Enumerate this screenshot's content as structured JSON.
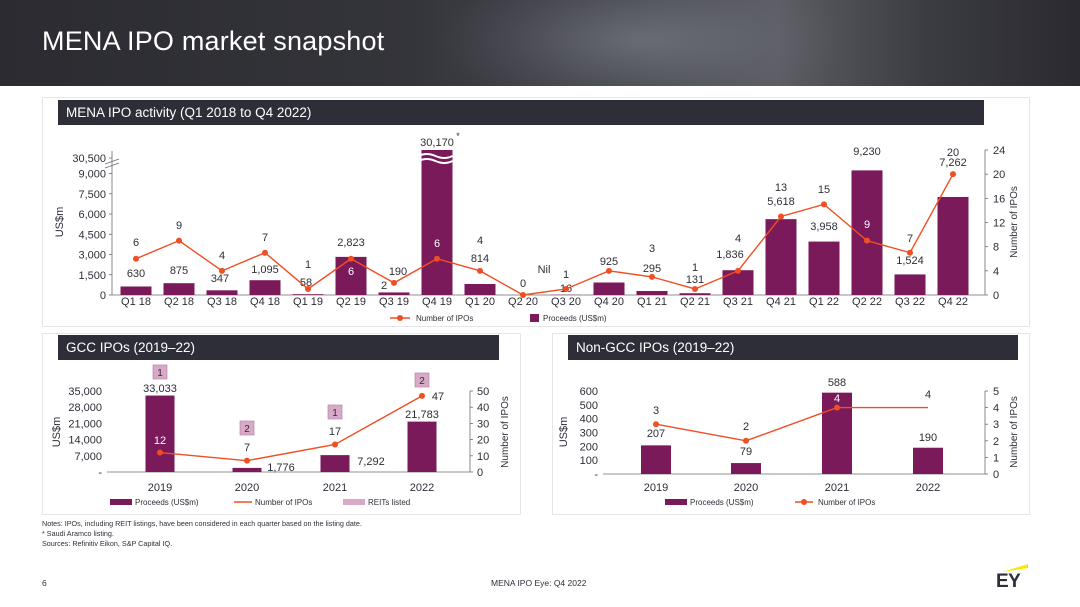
{
  "page": {
    "title": "MENA IPO market snapshot",
    "page_number": "6",
    "footer": "MENA IPO Eye: Q4 2022",
    "logo_text": "EY",
    "notes": [
      "Notes: IPOs, including REIT listings, have been considered in each quarter based on the listing date.",
      "* Saudi Aramco listing.",
      "Sources: Refinitiv Eikon, S&P Capital IQ."
    ]
  },
  "colors": {
    "bar": "#7a1a5a",
    "line": "#f04e23",
    "band": "#2e2e38",
    "reit": "#d9a9c8"
  },
  "chart_data": [
    {
      "type": "bar",
      "title": "MENA IPO activity (Q1 2018 to Q4 2022)",
      "ylabel": "US$m",
      "y2label": "Number of IPOs",
      "yticks": [
        "0",
        "1,500",
        "3,000",
        "4,500",
        "6,000",
        "7,500",
        "9,000",
        "30,500"
      ],
      "y2ticks": [
        "0",
        "4",
        "8",
        "12",
        "16",
        "20",
        "24"
      ],
      "ylim": [
        0,
        10000
      ],
      "y2lim": [
        0,
        24
      ],
      "axis_break": true,
      "categories": [
        "Q1 18",
        "Q2 18",
        "Q3 18",
        "Q4 18",
        "Q1 19",
        "Q2 19",
        "Q3 19",
        "Q4 19",
        "Q1 20",
        "Q2 20",
        "Q3 20",
        "Q4 20",
        "Q1 21",
        "Q2 21",
        "Q3 21",
        "Q4 21",
        "Q1 22",
        "Q2 22",
        "Q3 22",
        "Q4 22"
      ],
      "series": [
        {
          "name": "Proceeds (US$m)",
          "type": "bar",
          "values": [
            630,
            875,
            347,
            1095,
            58,
            2823,
            190,
            30170,
            814,
            0,
            16,
            925,
            295,
            131,
            1836,
            5618,
            3958,
            9230,
            1524,
            7262
          ],
          "labels": [
            "630",
            "875",
            "347",
            "1,095",
            "58",
            "2,823",
            "190",
            "30,170",
            "814",
            "0",
            "16",
            "925",
            "295",
            "131",
            "1,836",
            "5,618",
            "3,958",
            "9,230",
            "1,524",
            "7,262"
          ]
        },
        {
          "name": "Number of IPOs",
          "type": "line",
          "values": [
            6,
            9,
            4,
            7,
            1,
            6,
            2,
            6,
            4,
            0,
            1,
            4,
            3,
            1,
            4,
            13,
            15,
            9,
            7,
            20
          ],
          "labels": [
            "6",
            "9",
            "4",
            "7",
            "1",
            "6",
            "2",
            "6",
            "4",
            "",
            "1",
            "4",
            "3",
            "1",
            "4",
            "13",
            "15",
            "9",
            "7",
            "20"
          ]
        }
      ],
      "annotations": {
        "nil_label": "Nil",
        "aramco_mark": "*"
      },
      "legend": [
        "Number of IPOs",
        "Proceeds (US$m)"
      ]
    },
    {
      "type": "bar",
      "title": "GCC IPOs (2019–22)",
      "ylabel": "US$m",
      "y2label": "Number of IPOs",
      "yticks": [
        "-",
        "7,000",
        "14,000",
        "21,000",
        "28,000",
        "35,000"
      ],
      "y2ticks": [
        "0",
        "10",
        "20",
        "30",
        "40",
        "50"
      ],
      "ylim": [
        0,
        35000
      ],
      "y2lim": [
        0,
        50
      ],
      "categories": [
        "2019",
        "2020",
        "2021",
        "2022"
      ],
      "series": [
        {
          "name": "Proceeds (US$m)",
          "type": "bar",
          "values": [
            33033,
            1776,
            7292,
            21783
          ],
          "labels": [
            "33,033",
            "1,776",
            "7,292",
            "21,783"
          ]
        },
        {
          "name": "Number of IPOs",
          "type": "line",
          "values": [
            12,
            7,
            17,
            47
          ],
          "labels": [
            "12",
            "7",
            "17",
            "47"
          ]
        },
        {
          "name": "REITs listed",
          "type": "badge",
          "values": [
            1,
            2,
            1,
            2
          ],
          "labels": [
            "1",
            "2",
            "1",
            "2"
          ]
        }
      ],
      "legend": [
        "Proceeds (US$m)",
        "Number of IPOs",
        "REITs listed"
      ]
    },
    {
      "type": "bar",
      "title": "Non-GCC IPOs (2019–22)",
      "ylabel": "US$m",
      "y2label": "Number of IPOs",
      "yticks": [
        "-",
        "100",
        "200",
        "300",
        "400",
        "500",
        "600"
      ],
      "y2ticks": [
        "0",
        "1",
        "2",
        "3",
        "4",
        "5"
      ],
      "ylim": [
        0,
        600
      ],
      "y2lim": [
        0,
        5
      ],
      "categories": [
        "2019",
        "2020",
        "2021",
        "2022"
      ],
      "series": [
        {
          "name": "Proceeds (US$m)",
          "type": "bar",
          "values": [
            207,
            79,
            588,
            190
          ],
          "labels": [
            "207",
            "79",
            "588",
            "190"
          ]
        },
        {
          "name": "Number of IPOs",
          "type": "line",
          "values": [
            3,
            2,
            4,
            4
          ],
          "labels": [
            "3",
            "2",
            "4",
            "4"
          ]
        }
      ],
      "legend": [
        "Proceeds (US$m)",
        "Number of IPOs"
      ]
    }
  ]
}
